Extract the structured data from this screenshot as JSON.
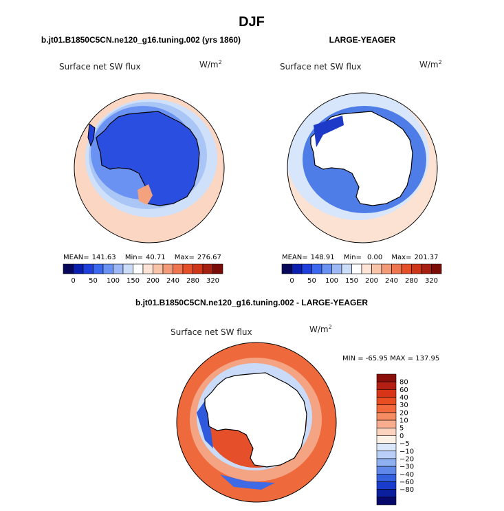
{
  "title": "DJF",
  "chart_data": [
    {
      "type": "heatmap",
      "projection": "south-polar-stereographic",
      "title": "b.jt01.B1850C5CN.ne120_g16.tuning.002 (yrs 1860)",
      "field_label": "Surface net SW flux",
      "units": "W/m",
      "units_exp": "2",
      "stats": [
        {
          "label": "MEAN=",
          "value": "141.63"
        },
        {
          "label": "Min=",
          "value": "40.71"
        },
        {
          "label": "Max=",
          "value": "276.67"
        }
      ],
      "colorbar": {
        "orientation": "horizontal",
        "tick_labels": [
          "0",
          "50",
          "100",
          "150",
          "200",
          "240",
          "280",
          "320"
        ],
        "colors": [
          "#08085a",
          "#0a1fb0",
          "#1e3fdc",
          "#3b68ee",
          "#6a92f2",
          "#9cb8f5",
          "#cbdcf9",
          "#ffffff",
          "#fde4d6",
          "#f9c3a8",
          "#f39a78",
          "#ee7550",
          "#e5502b",
          "#cf3518",
          "#a52010",
          "#7a0c08"
        ]
      }
    },
    {
      "type": "heatmap",
      "projection": "south-polar-stereographic",
      "title": "LARGE-YEAGER",
      "field_label": "Surface net SW flux",
      "units": "W/m",
      "units_exp": "2",
      "stats": [
        {
          "label": "MEAN=",
          "value": "148.91"
        },
        {
          "label": "Min=",
          "value": "0.00"
        },
        {
          "label": "Max=",
          "value": "201.37"
        }
      ],
      "colorbar": {
        "orientation": "horizontal",
        "tick_labels": [
          "0",
          "50",
          "100",
          "150",
          "200",
          "240",
          "280",
          "320"
        ],
        "colors": [
          "#08085a",
          "#0a1fb0",
          "#1e3fdc",
          "#3b68ee",
          "#6a92f2",
          "#9cb8f5",
          "#cbdcf9",
          "#ffffff",
          "#fde4d6",
          "#f9c3a8",
          "#f39a78",
          "#ee7550",
          "#e5502b",
          "#cf3518",
          "#a52010",
          "#7a0c08"
        ]
      }
    },
    {
      "type": "heatmap",
      "projection": "south-polar-stereographic",
      "title": "b.jt01.B1850C5CN.ne120_g16.tuning.002 - LARGE-YEAGER",
      "field_label": "Surface net SW flux",
      "units": "W/m",
      "units_exp": "2",
      "minmax": "MIN = -65.95  MAX = 137.95",
      "colorbar": {
        "orientation": "vertical",
        "tick_labels": [
          "80",
          "60",
          "40",
          "30",
          "20",
          "10",
          "5",
          "0",
          "−5",
          "−10",
          "−20",
          "−30",
          "−40",
          "−60",
          "−80"
        ],
        "colors": [
          "#8a0f0a",
          "#b31f12",
          "#d83418",
          "#ea4d22",
          "#f26a3c",
          "#f58c62",
          "#f8ae8e",
          "#fbd3bf",
          "#fdf0e6",
          "#dbe7fb",
          "#b9cff7",
          "#8fb1f1",
          "#5f88e9",
          "#3461de",
          "#1a3ccd",
          "#0b1f9e",
          "#06096a"
        ]
      }
    }
  ]
}
